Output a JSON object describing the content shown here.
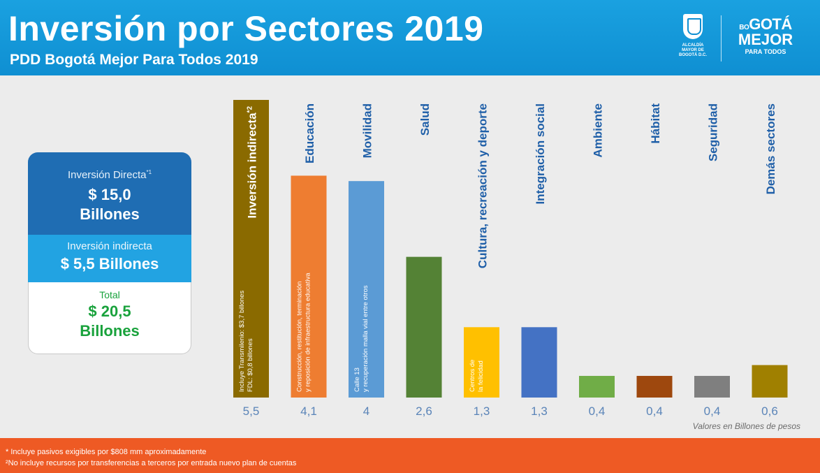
{
  "header": {
    "title": "Inversión por Sectores 2019",
    "subtitle": "PDD Bogotá Mejor Para Todos 2019"
  },
  "logos": {
    "crest_text": "ALCALDÍA MAYOR DE BOGOTÁ D.C.",
    "brand_line1_small": "BO",
    "brand_line1": "GOTÁ",
    "brand_line2": "MEJOR",
    "brand_line3": "PARA TODOS"
  },
  "summary": {
    "direct_label": "Inversión Directa",
    "direct_marker": "*1",
    "direct_value": "$ 15,0",
    "direct_unit": "Billones",
    "indirect_label": "Inversión indirecta",
    "indirect_value": "$ 5,5 Billones",
    "total_label": "Total",
    "total_value": "$ 20,5",
    "total_unit": "Billones"
  },
  "chart_data": {
    "type": "bar",
    "categories": [
      "Inversión indirecta",
      "Educación",
      "Movilidad",
      "Salud",
      "Cultura, recreación y deporte",
      "Integración social",
      "Ambiente",
      "Hábitat",
      "Seguridad",
      "Demás sectores"
    ],
    "category_label_markers": [
      "*2",
      "",
      "",
      "",
      "",
      "",
      "",
      "",
      "",
      ""
    ],
    "values": [
      5.5,
      4.1,
      4.0,
      2.6,
      1.3,
      1.3,
      0.4,
      0.4,
      0.4,
      0.6
    ],
    "value_labels": [
      "5,5",
      "4,1",
      "4",
      "2,6",
      "1,3",
      "1,3",
      "0,4",
      "0,4",
      "0,4",
      "0,6"
    ],
    "colors": [
      "#8a6a00",
      "#ee7d31",
      "#5b9bd5",
      "#548235",
      "#ffc000",
      "#4472c4",
      "#70ad47",
      "#9e480e",
      "#7f7f7f",
      "#a08000"
    ],
    "bar_annotations": [
      [
        "Incluye Transmilenio: $3,7 billones",
        "FDL: $0,8 billones"
      ],
      [
        "Construcción, restitución, terminación",
        "y reposición de infraestructura educativa"
      ],
      [
        "Calle 13",
        "y recuperación malla vial entre otros"
      ],
      [],
      [
        "Centros de",
        "la felicidad"
      ],
      [],
      [],
      [],
      [],
      []
    ],
    "ylim": [
      0,
      5.5
    ],
    "unit_note": "Valores en Billones de pesos",
    "grid": false,
    "legend": "none"
  },
  "footer": {
    "note1": "* Incluye pasivos exigibles por $808 mm aproximadamente",
    "note2": "²No incluye recursos por transferencias a terceros por entrada nuevo plan de cuentas"
  }
}
